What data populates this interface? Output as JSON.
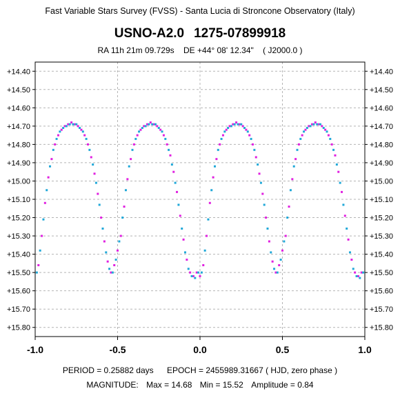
{
  "header": {
    "survey": "Fast Variable Stars Survey (FVSS) - Santa Lucia di Stroncone Observatory (Italy)",
    "star_catalog": "USNO-A2.0",
    "star_id": "1275-07899918",
    "ra": "RA  11h 21m 09.729s",
    "de": "DE  +44° 08' 12.34\"",
    "epoch_label": "( J2000.0 )"
  },
  "footer": {
    "period": "PERIOD = 0.25882 days",
    "epoch": "EPOCH = 2455989.31667  ( HJD, zero phase )",
    "magnitude_label": "MAGNITUDE:",
    "max": "Max = 14.68",
    "min": "Min = 15.52",
    "amplitude": "Amplitude = 0.84"
  },
  "chart_data": {
    "type": "scatter",
    "title": "USNO-A2.0  1275-07899918",
    "xlabel": "",
    "ylabel": "",
    "xlim": [
      -1.0,
      1.0
    ],
    "ylim": [
      15.85,
      14.35
    ],
    "y_inverted": true,
    "grid": true,
    "x_ticks": [
      "-1.0",
      "-0.5",
      "0.0",
      "0.5",
      "1.0"
    ],
    "x_tick_values": [
      -1.0,
      -0.5,
      0.0,
      0.5,
      1.0
    ],
    "y_ticks": [
      "+14.40",
      "+14.50",
      "+14.60",
      "+14.70",
      "+14.80",
      "+14.90",
      "+15.00",
      "+15.10",
      "+15.20",
      "+15.30",
      "+15.40",
      "+15.50",
      "+15.60",
      "+15.70",
      "+15.80"
    ],
    "y_tick_values": [
      14.4,
      14.5,
      14.6,
      14.7,
      14.8,
      14.9,
      15.0,
      15.1,
      15.2,
      15.3,
      15.4,
      15.5,
      15.6,
      15.7,
      15.8
    ],
    "colors": {
      "series_a": "#e020e0",
      "series_b": "#20a8d8",
      "grid": "#b4b4b4",
      "axis": "#000000"
    },
    "series": [
      {
        "color": "#e020e0",
        "x": [
          -0.98,
          -0.96,
          -0.94,
          -0.92,
          -0.9,
          -0.88,
          -0.86,
          -0.84,
          -0.82,
          -0.8,
          -0.78,
          -0.76,
          -0.74,
          -0.72,
          -0.7,
          -0.68,
          -0.66,
          -0.64,
          -0.62,
          -0.6,
          -0.58,
          -0.56,
          -0.54,
          -0.52,
          -0.5,
          -0.48,
          -0.46,
          -0.44,
          -0.42,
          -0.4,
          -0.38,
          -0.36,
          -0.34,
          -0.32,
          -0.3,
          -0.28,
          -0.26,
          -0.24,
          -0.22,
          -0.2,
          -0.18,
          -0.16,
          -0.14,
          -0.12,
          -0.1,
          -0.08,
          -0.06,
          -0.04,
          -0.02,
          0.0,
          0.02,
          0.04,
          0.06,
          0.08,
          0.1,
          0.12,
          0.14,
          0.16,
          0.18,
          0.2,
          0.22,
          0.24,
          0.26,
          0.28,
          0.3,
          0.32,
          0.34,
          0.36,
          0.38,
          0.4,
          0.42,
          0.44,
          0.46,
          0.48,
          0.5,
          0.52,
          0.54,
          0.56,
          0.58,
          0.6,
          0.62,
          0.64,
          0.66,
          0.68,
          0.7,
          0.72,
          0.74,
          0.76,
          0.78,
          0.8,
          0.82,
          0.84,
          0.86,
          0.88,
          0.9,
          0.92,
          0.94,
          0.96,
          0.98
        ],
        "y": [
          15.46,
          15.3,
          15.12,
          14.98,
          14.88,
          14.8,
          14.75,
          14.72,
          14.7,
          14.69,
          14.68,
          14.69,
          14.7,
          14.72,
          14.75,
          14.8,
          14.87,
          14.96,
          15.07,
          15.2,
          15.33,
          15.44,
          15.5,
          15.46,
          15.38,
          15.3,
          15.14,
          14.99,
          14.88,
          14.8,
          14.75,
          14.72,
          14.7,
          14.69,
          14.68,
          14.69,
          14.7,
          14.72,
          14.75,
          14.8,
          14.86,
          14.95,
          15.06,
          15.19,
          15.32,
          15.43,
          15.5,
          15.52,
          15.5,
          15.52,
          15.46,
          15.3,
          15.12,
          14.98,
          14.88,
          14.8,
          14.75,
          14.72,
          14.7,
          14.69,
          14.68,
          14.69,
          14.7,
          14.72,
          14.75,
          14.8,
          14.87,
          14.96,
          15.07,
          15.2,
          15.33,
          15.44,
          15.5,
          15.46,
          15.38,
          15.3,
          15.14,
          14.99,
          14.88,
          14.8,
          14.75,
          14.72,
          14.7,
          14.69,
          14.68,
          14.69,
          14.7,
          14.72,
          14.75,
          14.8,
          14.86,
          14.95,
          15.06,
          15.19,
          15.32,
          15.43,
          15.5,
          15.52,
          15.5
        ]
      },
      {
        "color": "#20a8d8",
        "x": [
          -0.99,
          -0.97,
          -0.95,
          -0.93,
          -0.91,
          -0.89,
          -0.87,
          -0.85,
          -0.83,
          -0.81,
          -0.79,
          -0.77,
          -0.75,
          -0.73,
          -0.71,
          -0.69,
          -0.67,
          -0.65,
          -0.63,
          -0.61,
          -0.59,
          -0.57,
          -0.55,
          -0.53,
          -0.51,
          -0.49,
          -0.47,
          -0.45,
          -0.43,
          -0.41,
          -0.39,
          -0.37,
          -0.35,
          -0.33,
          -0.31,
          -0.29,
          -0.27,
          -0.25,
          -0.23,
          -0.21,
          -0.19,
          -0.17,
          -0.15,
          -0.13,
          -0.11,
          -0.09,
          -0.07,
          -0.05,
          -0.03,
          -0.01,
          0.01,
          0.03,
          0.05,
          0.07,
          0.09,
          0.11,
          0.13,
          0.15,
          0.17,
          0.19,
          0.21,
          0.23,
          0.25,
          0.27,
          0.29,
          0.31,
          0.33,
          0.35,
          0.37,
          0.39,
          0.41,
          0.43,
          0.45,
          0.47,
          0.49,
          0.51,
          0.53,
          0.55,
          0.57,
          0.59,
          0.61,
          0.63,
          0.65,
          0.67,
          0.69,
          0.71,
          0.73,
          0.75,
          0.77,
          0.79,
          0.81,
          0.83,
          0.85,
          0.87,
          0.89,
          0.91,
          0.93,
          0.95,
          0.97,
          0.99
        ],
        "y": [
          15.5,
          15.38,
          15.21,
          15.05,
          14.92,
          14.83,
          14.77,
          14.73,
          14.71,
          14.7,
          14.69,
          14.69,
          14.69,
          14.71,
          14.73,
          14.77,
          14.83,
          14.91,
          15.01,
          15.13,
          15.26,
          15.39,
          15.48,
          15.5,
          15.43,
          15.33,
          15.2,
          15.05,
          14.92,
          14.83,
          14.77,
          14.73,
          14.71,
          14.7,
          14.69,
          14.69,
          14.69,
          14.71,
          14.73,
          14.77,
          14.83,
          14.91,
          15.01,
          15.13,
          15.26,
          15.39,
          15.48,
          15.52,
          15.53,
          15.5,
          15.5,
          15.38,
          15.21,
          15.05,
          14.92,
          14.83,
          14.77,
          14.73,
          14.71,
          14.7,
          14.69,
          14.69,
          14.69,
          14.71,
          14.73,
          14.77,
          14.83,
          14.91,
          15.01,
          15.13,
          15.26,
          15.39,
          15.48,
          15.5,
          15.43,
          15.33,
          15.2,
          15.05,
          14.92,
          14.83,
          14.77,
          14.73,
          14.71,
          14.7,
          14.69,
          14.69,
          14.69,
          14.71,
          14.73,
          14.77,
          14.83,
          14.91,
          15.01,
          15.13,
          15.26,
          15.39,
          15.48,
          15.52,
          15.53,
          15.5
        ]
      }
    ]
  }
}
